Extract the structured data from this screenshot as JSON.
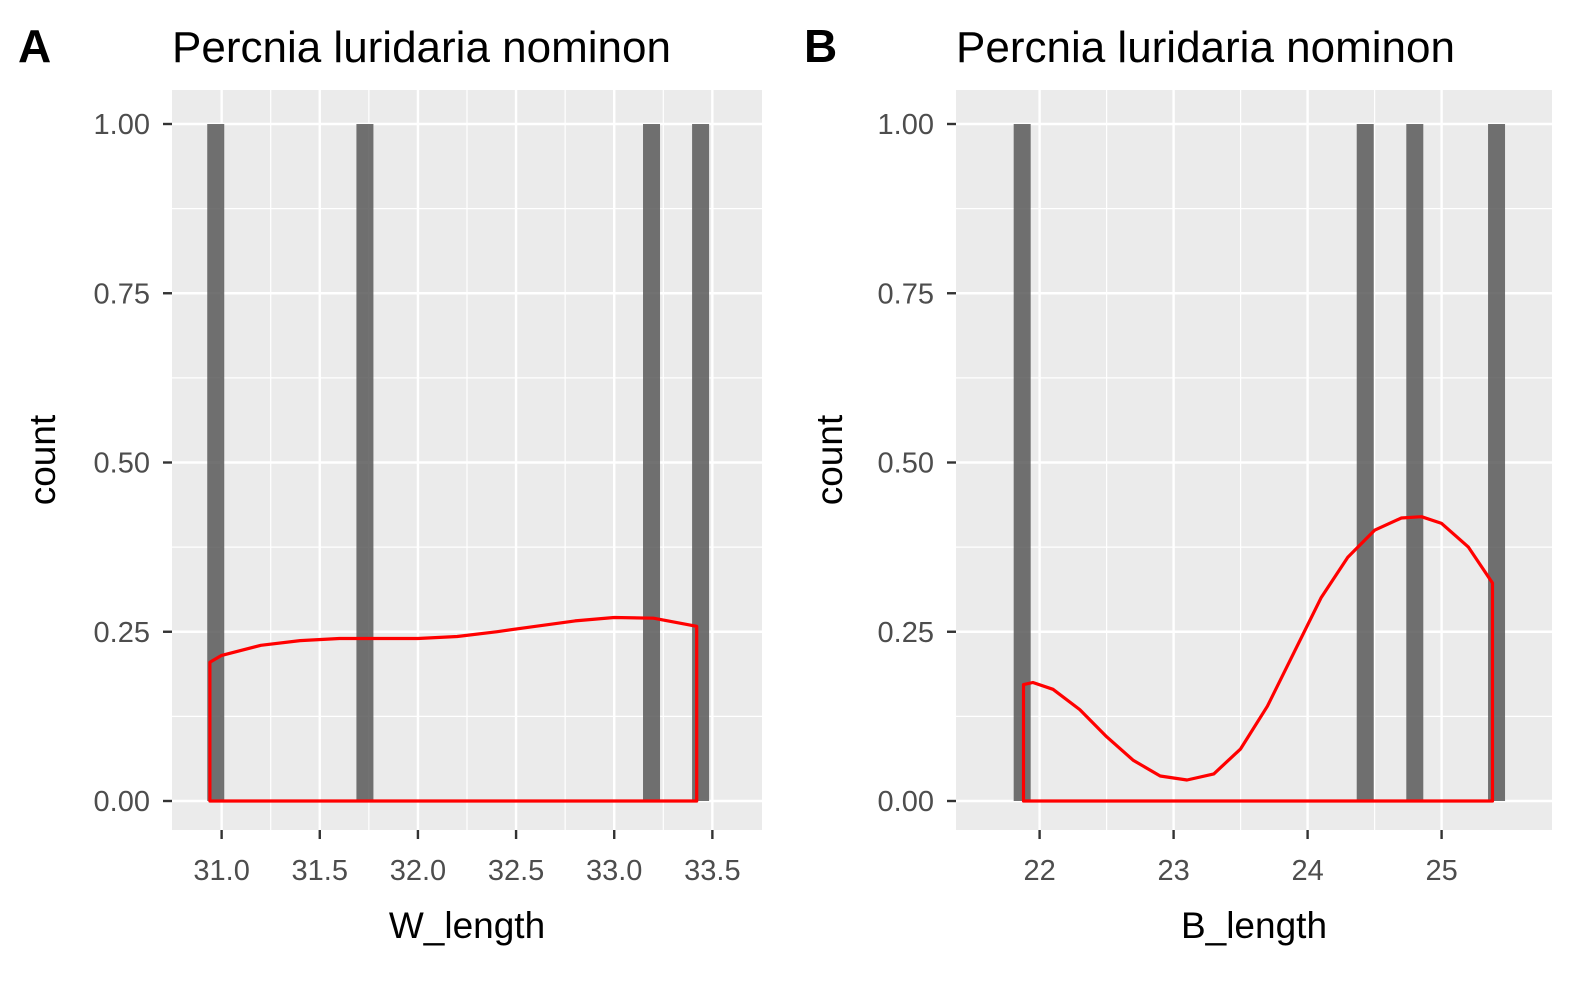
{
  "chart_data": [
    {
      "panel_label": "A",
      "type": "bar",
      "title": "Percnia luridaria nominon",
      "xlabel": "W_length",
      "ylabel": "count",
      "xlim": [
        30.9,
        33.6
      ],
      "ylim": [
        0,
        1
      ],
      "xticks": [
        "31.0",
        "31.5",
        "32.0",
        "32.5",
        "33.0",
        "33.5"
      ],
      "yticks": [
        "0.00",
        "0.25",
        "0.50",
        "0.75",
        "1.00"
      ],
      "grid": true,
      "bars": {
        "x": [
          30.97,
          31.73,
          33.19,
          33.44
        ],
        "values": [
          1,
          1,
          1,
          1
        ],
        "color": "#595959"
      },
      "density": {
        "color": "#ff0000",
        "x": [
          30.94,
          31.0,
          31.2,
          31.4,
          31.6,
          31.8,
          32.0,
          32.2,
          32.4,
          32.6,
          32.8,
          33.0,
          33.2,
          33.42
        ],
        "y": [
          0.205,
          0.215,
          0.23,
          0.237,
          0.24,
          0.24,
          0.24,
          0.243,
          0.25,
          0.258,
          0.266,
          0.271,
          0.27,
          0.258
        ]
      }
    },
    {
      "panel_label": "B",
      "type": "bar",
      "title": "Percnia luridaria nominon",
      "xlabel": "B_length",
      "ylabel": "count",
      "xlim": [
        21.6,
        25.6
      ],
      "ylim": [
        0,
        1
      ],
      "xticks": [
        "22",
        "23",
        "24",
        "25"
      ],
      "yticks": [
        "0.00",
        "0.25",
        "0.50",
        "0.75",
        "1.00"
      ],
      "grid": true,
      "bars": {
        "x": [
          21.87,
          24.43,
          24.8,
          25.41
        ],
        "values": [
          1,
          1,
          1,
          1
        ],
        "color": "#595959"
      },
      "density": {
        "color": "#ff0000",
        "x": [
          21.88,
          21.95,
          22.1,
          22.3,
          22.5,
          22.7,
          22.9,
          23.1,
          23.3,
          23.5,
          23.7,
          23.9,
          24.1,
          24.3,
          24.5,
          24.7,
          24.85,
          25.0,
          25.2,
          25.38
        ],
        "y": [
          0.172,
          0.175,
          0.165,
          0.135,
          0.095,
          0.06,
          0.037,
          0.031,
          0.04,
          0.077,
          0.14,
          0.22,
          0.3,
          0.36,
          0.4,
          0.418,
          0.42,
          0.41,
          0.375,
          0.322
        ]
      }
    }
  ]
}
